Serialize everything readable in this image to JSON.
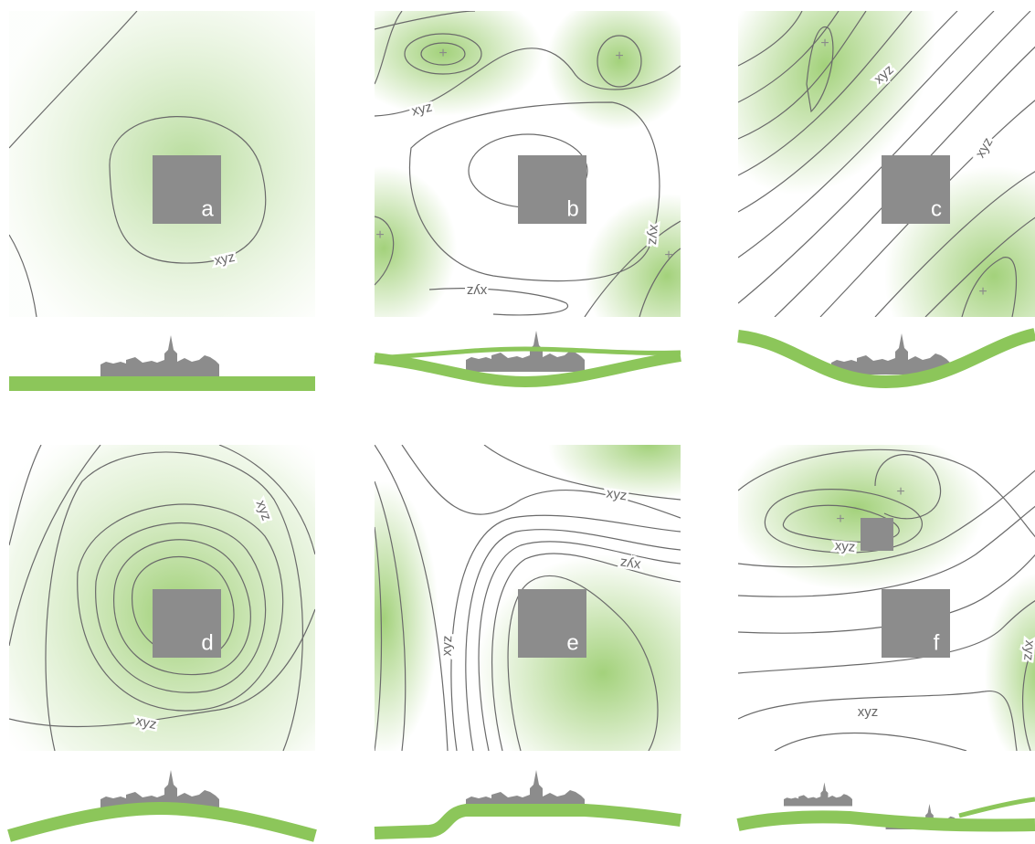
{
  "panels": [
    {
      "label": "a",
      "contour_labels": [
        "xyz"
      ]
    },
    {
      "label": "b",
      "contour_labels": [
        "xyz",
        "xyz",
        "xyz"
      ]
    },
    {
      "label": "c",
      "contour_labels": [
        "xyz",
        "xyz"
      ]
    },
    {
      "label": "d",
      "contour_labels": [
        "xyz",
        "xyz"
      ]
    },
    {
      "label": "e",
      "contour_labels": [
        "xyz",
        "xyz",
        "xyz"
      ]
    },
    {
      "label": "f",
      "contour_labels": [
        "xyz",
        "xyz",
        "xyz"
      ]
    }
  ]
}
